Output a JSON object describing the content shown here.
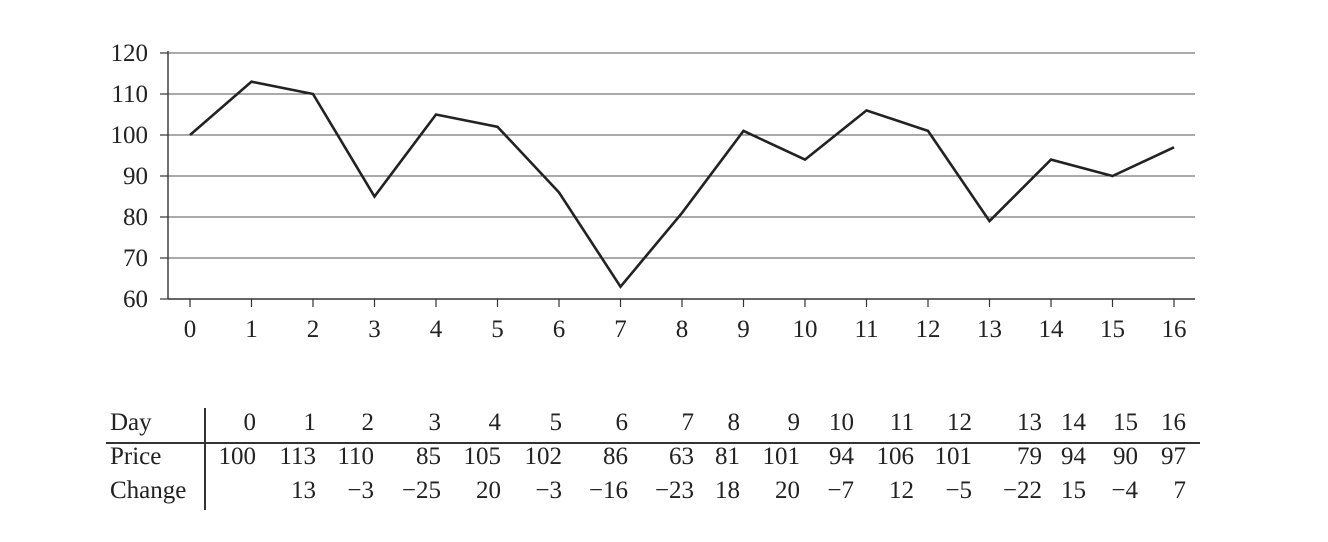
{
  "chart_data": {
    "type": "line",
    "title": "",
    "xlabel": "",
    "ylabel": "",
    "x": [
      0,
      1,
      2,
      3,
      4,
      5,
      6,
      7,
      8,
      9,
      10,
      11,
      12,
      13,
      14,
      15,
      16
    ],
    "series": [
      {
        "values": [
          100,
          113,
          110,
          85,
          105,
          102,
          86,
          63,
          81,
          101,
          94,
          106,
          101,
          79,
          94,
          90,
          97
        ]
      }
    ],
    "ylim": [
      60,
      120
    ],
    "xlim": [
      0,
      16
    ],
    "yticks": [
      "60",
      "70",
      "80",
      "90",
      "100",
      "110",
      "120"
    ],
    "xticks": [
      "0",
      "1",
      "2",
      "3",
      "4",
      "5",
      "6",
      "7",
      "8",
      "9",
      "10",
      "11",
      "12",
      "13",
      "14",
      "15",
      "16"
    ],
    "grid": "horizontal",
    "line_color": "#222222"
  },
  "table": {
    "rows": [
      {
        "label": "Day",
        "values": [
          "0",
          "1",
          "2",
          "3",
          "4",
          "5",
          "6",
          "7",
          "8",
          "9",
          "10",
          "11",
          "12",
          "13",
          "14",
          "15",
          "16"
        ]
      },
      {
        "label": "Price",
        "values": [
          "100",
          "113",
          "110",
          "85",
          "105",
          "102",
          "86",
          "63",
          "81",
          "101",
          "94",
          "106",
          "101",
          "79",
          "94",
          "90",
          "97"
        ]
      },
      {
        "label": "Change",
        "values": [
          "",
          "13",
          "−3",
          "−25",
          "20",
          "−3",
          "−16",
          "−23",
          "18",
          "20",
          "−7",
          "12",
          "−5",
          "−22",
          "15",
          "−4",
          "7"
        ]
      }
    ]
  }
}
